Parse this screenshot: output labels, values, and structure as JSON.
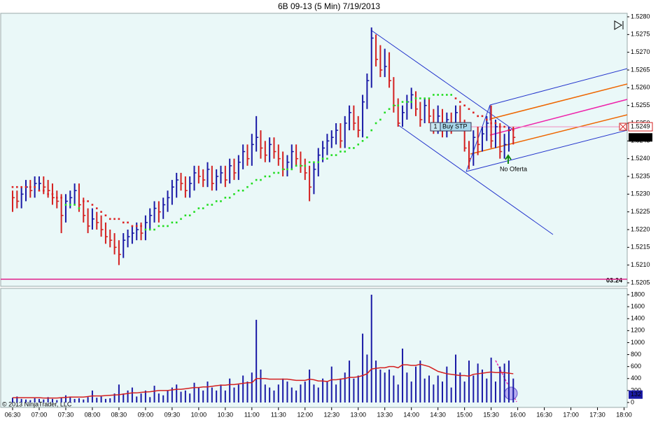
{
  "chart_data": {
    "type": "ohlc",
    "title": "6B 09-13 (5 Min)  7/19/2013",
    "copyright": "© 2013 NinjaTrader, LLC",
    "timer": "03:24",
    "x_labels": [
      "06:30",
      "07:00",
      "07:30",
      "08:00",
      "08:30",
      "09:00",
      "09:30",
      "10:00",
      "10:30",
      "11:00",
      "11:30",
      "12:00",
      "12:30",
      "13:00",
      "13:30",
      "14:00",
      "14:30",
      "15:00",
      "15:30",
      "16:00",
      "16:30",
      "17:00",
      "17:30",
      "18:00"
    ],
    "ylim": [
      1.5205,
      1.528
    ],
    "yticks": [
      1.5205,
      {
        "value": 1.521,
        "label": "1.5210"
      },
      1.5215,
      {
        "value": 1.522,
        "label": "1.5220"
      },
      1.5225,
      {
        "value": 1.523,
        "label": "1.5230"
      },
      1.5235,
      {
        "value": 1.524,
        "label": "1.5240"
      },
      1.5245,
      {
        "value": 1.525,
        "label": "1.5250"
      },
      1.5255,
      {
        "value": 1.526,
        "label": "1.5260"
      },
      1.5265,
      {
        "value": 1.527,
        "label": "1.5270"
      },
      1.5275,
      {
        "value": 1.528,
        "label": "1.5280"
      }
    ],
    "high": [
      1.5231,
      1.5231,
      1.5232,
      1.5234,
      1.5234,
      1.5235,
      1.5235,
      1.5235,
      1.5234,
      1.5233,
      1.5231,
      1.523,
      1.523,
      1.5231,
      1.5233,
      1.5233,
      1.5229,
      1.5226,
      1.5226,
      1.5225,
      1.5224,
      1.5222,
      1.522,
      1.5219,
      1.5217,
      1.5219,
      1.522,
      1.5221,
      1.5222,
      1.5222,
      1.5224,
      1.5226,
      1.5228,
      1.5228,
      1.5229,
      1.5231,
      1.5234,
      1.5236,
      1.5236,
      1.5235,
      1.5235,
      1.5238,
      1.5238,
      1.5237,
      1.5239,
      1.5238,
      1.5237,
      1.5238,
      1.5238,
      1.524,
      1.524,
      1.5241,
      1.5244,
      1.5244,
      1.5247,
      1.5252,
      1.5248,
      1.5245,
      1.5246,
      1.5246,
      1.5244,
      1.5242,
      1.5241,
      1.5244,
      1.5244,
      1.5242,
      1.524,
      1.5238,
      1.5239,
      1.5243,
      1.5245,
      1.5247,
      1.5248,
      1.525,
      1.525,
      1.5252,
      1.5255,
      1.5255,
      1.5252,
      1.5258,
      1.5264,
      1.5277,
      1.5275,
      1.5272,
      1.5271,
      1.527,
      1.5263,
      1.5257,
      1.5255,
      1.5258,
      1.526,
      1.5259,
      1.5256,
      1.5257,
      1.5257,
      1.5254,
      1.5255,
      1.5254,
      1.5253,
      1.5253,
      1.5255,
      1.5255,
      1.5251,
      1.5245,
      1.5248,
      1.5249,
      1.5249,
      1.5252,
      1.5255,
      1.5251,
      1.525,
      1.5247,
      1.5249,
      1.5249
    ],
    "low": [
      1.5225,
      1.5226,
      1.5226,
      1.5228,
      1.5229,
      1.5229,
      1.5231,
      1.523,
      1.5229,
      1.5227,
      1.5226,
      1.5219,
      1.5222,
      1.5226,
      1.5227,
      1.5225,
      1.5222,
      1.5219,
      1.522,
      1.522,
      1.5218,
      1.5216,
      1.5215,
      1.5213,
      1.521,
      1.5212,
      1.5215,
      1.5216,
      1.5217,
      1.5217,
      1.5217,
      1.522,
      1.5222,
      1.5222,
      1.5223,
      1.5225,
      1.5227,
      1.5229,
      1.5231,
      1.5229,
      1.5229,
      1.5231,
      1.5233,
      1.5232,
      1.5232,
      1.5231,
      1.5231,
      1.5233,
      1.5232,
      1.5233,
      1.5234,
      1.5234,
      1.5237,
      1.5238,
      1.5238,
      1.5242,
      1.524,
      1.5239,
      1.5239,
      1.524,
      1.5238,
      1.5235,
      1.5235,
      1.5237,
      1.5238,
      1.5236,
      1.5234,
      1.5228,
      1.523,
      1.5235,
      1.5239,
      1.5241,
      1.5243,
      1.5244,
      1.5243,
      1.5243,
      1.5248,
      1.5248,
      1.5246,
      1.5246,
      1.5254,
      1.526,
      1.5266,
      1.5263,
      1.5263,
      1.526,
      1.5253,
      1.5249,
      1.5249,
      1.5251,
      1.5254,
      1.5252,
      1.5249,
      1.525,
      1.525,
      1.5247,
      1.5247,
      1.5246,
      1.5246,
      1.5247,
      1.5248,
      1.5248,
      1.5242,
      1.5237,
      1.5238,
      1.5241,
      1.5242,
      1.5245,
      1.5243,
      1.5243,
      1.524,
      1.524,
      1.5242,
      1.5244
    ],
    "close": [
      1.5229,
      1.5228,
      1.523,
      1.5232,
      1.5231,
      1.5233,
      1.5233,
      1.5232,
      1.5231,
      1.5229,
      1.5228,
      1.5224,
      1.5228,
      1.5229,
      1.5231,
      1.5227,
      1.5224,
      1.5221,
      1.5223,
      1.5222,
      1.522,
      1.5218,
      1.5217,
      1.5215,
      1.5213,
      1.5217,
      1.5218,
      1.5219,
      1.522,
      1.5219,
      1.5222,
      1.5224,
      1.5226,
      1.5225,
      1.5227,
      1.5229,
      1.5232,
      1.5234,
      1.5233,
      1.5231,
      1.5233,
      1.5236,
      1.5235,
      1.5234,
      1.5237,
      1.5233,
      1.5235,
      1.5236,
      1.5234,
      1.5238,
      1.5236,
      1.5239,
      1.5242,
      1.524,
      1.5244,
      1.5246,
      1.5243,
      1.5241,
      1.5244,
      1.5242,
      1.524,
      1.5237,
      1.5239,
      1.5242,
      1.524,
      1.5238,
      1.5236,
      1.5232,
      1.5237,
      1.5241,
      1.5243,
      1.5245,
      1.5246,
      1.5248,
      1.5245,
      1.525,
      1.5253,
      1.525,
      1.5248,
      1.5256,
      1.5262,
      1.5274,
      1.5268,
      1.5265,
      1.5266,
      1.5262,
      1.5255,
      1.525,
      1.5253,
      1.5256,
      1.5258,
      1.5254,
      1.5251,
      1.5255,
      1.5252,
      1.5249,
      1.5252,
      1.5248,
      1.5251,
      1.5249,
      1.5253,
      1.525,
      1.5243,
      1.524,
      1.5246,
      1.5244,
      1.5247,
      1.525,
      1.5245,
      1.5249,
      1.5242,
      1.5244,
      1.5248,
      1.5246
    ],
    "trail_up": [
      null,
      null,
      null,
      null,
      null,
      null,
      null,
      null,
      null,
      null,
      null,
      null,
      1.5227,
      1.5227,
      1.5227,
      1.5226,
      null,
      null,
      null,
      null,
      null,
      null,
      null,
      null,
      null,
      null,
      null,
      null,
      null,
      null,
      1.522,
      1.522,
      1.522,
      1.5221,
      1.5221,
      1.5221,
      1.5222,
      1.5222,
      1.5223,
      1.5224,
      1.5224,
      1.5225,
      1.5226,
      1.5226,
      1.5227,
      1.5227,
      1.5228,
      1.5228,
      1.5229,
      1.5229,
      1.523,
      1.5231,
      1.5231,
      1.5232,
      1.5233,
      1.5234,
      1.5234,
      1.5235,
      1.5235,
      1.5236,
      1.5236,
      1.5237,
      1.5237,
      1.5237,
      1.5238,
      1.5238,
      1.5238,
      1.5239,
      1.5239,
      1.5239,
      1.524,
      1.524,
      1.5241,
      1.5241,
      1.5242,
      1.5242,
      1.5243,
      1.5243,
      1.5244,
      1.5245,
      1.5246,
      1.5248,
      1.525,
      1.5251,
      1.5253,
      1.5254,
      1.5255,
      1.5255,
      1.5256,
      1.5256,
      1.5256,
      1.5257,
      1.5257,
      1.5257,
      1.5257,
      1.5258,
      1.5258,
      1.5258,
      1.5258,
      1.5258,
      null,
      null,
      null,
      null,
      null,
      null,
      null,
      null,
      null,
      null,
      null,
      null,
      null,
      null
    ],
    "trail_down": [
      1.5232,
      1.5232,
      1.5232,
      1.5232,
      1.5232,
      1.5232,
      1.5231,
      1.5231,
      1.523,
      1.523,
      1.5229,
      1.5229,
      null,
      null,
      null,
      null,
      1.5228,
      1.5228,
      1.5227,
      1.5226,
      1.5225,
      1.5224,
      1.5223,
      1.5223,
      1.5223,
      1.5222,
      1.5222,
      1.5221,
      1.5221,
      1.5221,
      null,
      null,
      null,
      null,
      null,
      null,
      null,
      null,
      null,
      null,
      null,
      null,
      null,
      null,
      null,
      null,
      null,
      null,
      null,
      null,
      null,
      null,
      null,
      null,
      null,
      null,
      null,
      null,
      null,
      null,
      null,
      null,
      null,
      null,
      null,
      null,
      null,
      null,
      null,
      null,
      null,
      null,
      null,
      null,
      null,
      null,
      null,
      null,
      null,
      null,
      null,
      null,
      null,
      null,
      null,
      null,
      null,
      null,
      null,
      null,
      null,
      null,
      null,
      null,
      null,
      null,
      null,
      null,
      null,
      null,
      1.5257,
      1.5256,
      1.5255,
      1.5254,
      1.5253,
      1.5252,
      1.5252,
      1.5251,
      1.525,
      1.525,
      1.5249,
      1.5249,
      1.5248,
      1.5248
    ],
    "level": 1.5206,
    "order": {
      "qty": 1,
      "label": "Buy STP",
      "price": 1.5249
    },
    "last_price": 1.5246,
    "annotation": "No Oferta",
    "volume": {
      "ylim": [
        0,
        1800
      ],
      "yticks": [
        0,
        200,
        400,
        600,
        800,
        1000,
        1200,
        1400,
        1600,
        1800
      ],
      "values": [
        80,
        100,
        60,
        50,
        40,
        70,
        60,
        50,
        90,
        60,
        40,
        80,
        120,
        100,
        60,
        70,
        50,
        90,
        200,
        80,
        100,
        60,
        70,
        150,
        300,
        150,
        200,
        250,
        100,
        150,
        200,
        90,
        280,
        150,
        120,
        200,
        250,
        300,
        180,
        200,
        150,
        330,
        250,
        200,
        350,
        250,
        200,
        300,
        200,
        400,
        250,
        300,
        450,
        350,
        500,
        1380,
        550,
        300,
        250,
        200,
        300,
        400,
        350,
        250,
        200,
        300,
        350,
        550,
        300,
        250,
        400,
        350,
        600,
        300,
        400,
        500,
        700,
        400,
        450,
        1150,
        800,
        1800,
        700,
        550,
        500,
        550,
        450,
        300,
        900,
        500,
        350,
        600,
        700,
        400,
        450,
        300,
        450,
        350,
        600,
        250,
        800,
        500,
        350,
        700,
        450,
        650,
        550,
        400,
        750,
        350,
        600,
        650,
        700,
        400
      ],
      "ma": [
        80,
        80,
        80,
        80,
        80,
        80,
        80,
        75,
        75,
        75,
        75,
        80,
        85,
        90,
        90,
        90,
        90,
        100,
        110,
        110,
        110,
        115,
        120,
        125,
        130,
        140,
        150,
        160,
        160,
        170,
        175,
        180,
        190,
        200,
        200,
        200,
        210,
        220,
        220,
        230,
        240,
        250,
        250,
        260,
        260,
        270,
        280,
        290,
        290,
        300,
        300,
        310,
        320,
        330,
        330,
        400,
        400,
        400,
        390,
        390,
        390,
        390,
        390,
        380,
        370,
        370,
        370,
        390,
        380,
        360,
        360,
        350,
        380,
        380,
        390,
        400,
        420,
        420,
        430,
        450,
        480,
        560,
        570,
        580,
        580,
        600,
        600,
        580,
        630,
        630,
        620,
        620,
        640,
        620,
        600,
        560,
        520,
        500,
        480,
        470,
        460,
        450,
        450,
        440,
        470,
        480,
        490,
        500,
        510,
        500,
        500,
        500,
        490,
        480
      ],
      "last": 132
    }
  }
}
